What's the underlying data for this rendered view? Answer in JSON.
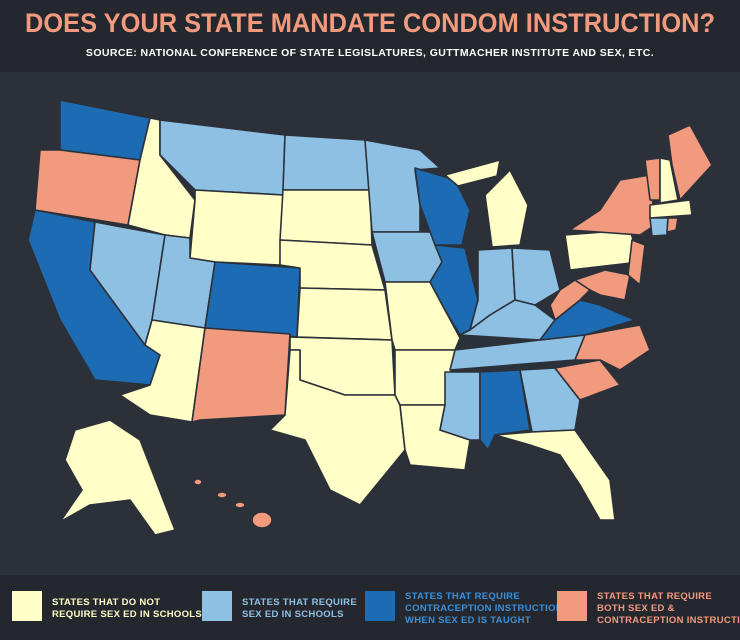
{
  "header": {
    "title": "DOES YOUR STATE MANDATE CONDOM INSTRUCTION?",
    "source": "SOURCE:  NATIONAL CONFERENCE OF STATE LEGISLATURES, GUTTMACHER INSTITUTE AND SEX, ETC."
  },
  "legend": [
    {
      "lines": [
        "STATES THAT DO NOT",
        "REQUIRE SEX ED IN SCHOOLS"
      ]
    },
    {
      "lines": [
        "STATES THAT REQUIRE",
        "SEX ED IN SCHOOLS"
      ]
    },
    {
      "lines": [
        "STATES THAT REQUIRE",
        "CONTRACEPTION INSTRUCTION",
        "WHEN SEX ED IS TAUGHT"
      ]
    },
    {
      "lines": [
        "STATES THAT REQUIRE",
        "BOTH SEX ED &",
        "CONTRACEPTION INSTRUCTION"
      ]
    }
  ]
}
